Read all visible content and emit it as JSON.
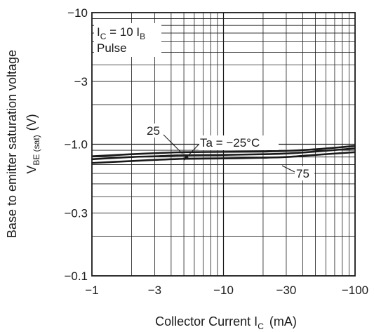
{
  "chart_data": {
    "type": "line",
    "x_scale": "log",
    "y_scale": "log",
    "xlim": [
      -1,
      -100
    ],
    "ylim": [
      -0.1,
      -10
    ],
    "grid": true,
    "x_ticks": [
      {
        "value": -1,
        "label": "−1"
      },
      {
        "value": -3,
        "label": "−3"
      },
      {
        "value": -10,
        "label": "−10"
      },
      {
        "value": -30,
        "label": "−30"
      },
      {
        "value": -100,
        "label": "−100"
      }
    ],
    "y_ticks": [
      {
        "value": -0.1,
        "label": "−0.1"
      },
      {
        "value": -0.3,
        "label": "−0.3"
      },
      {
        "value": -1.0,
        "label": "−1.0"
      },
      {
        "value": -3,
        "label": "−3"
      },
      {
        "value": -10,
        "label": "−10"
      }
    ],
    "xlabel": {
      "main": "Collector Current  I",
      "sub": "C",
      "unit": "(mA)"
    },
    "ylabel": {
      "line1": "Base to emitter saturation voltage",
      "line2_main": "V",
      "line2_sub": "BE (sat)",
      "line2_unit": "(V)"
    },
    "conditions": {
      "line1_main": "I",
      "line1_sub1": "C",
      "line1_mid": " = 10 I",
      "line1_sub2": "B",
      "line2": "Pulse"
    },
    "series": [
      {
        "name": "25",
        "label": "25",
        "x": [
          -1,
          -2,
          -3,
          -5,
          -10,
          -20,
          -30,
          -50,
          -100
        ],
        "y": [
          -0.81,
          -0.84,
          -0.855,
          -0.87,
          -0.875,
          -0.88,
          -0.89,
          -0.915,
          -0.97
        ]
      },
      {
        "name": "Ta = −25°C",
        "label": "Ta = −25°C",
        "x": [
          -1,
          -2,
          -3,
          -5,
          -10,
          -20,
          -30,
          -50,
          -100
        ],
        "y": [
          -0.77,
          -0.8,
          -0.81,
          -0.825,
          -0.83,
          -0.84,
          -0.85,
          -0.88,
          -0.93
        ]
      },
      {
        "name": "75",
        "label": "75",
        "x": [
          -1,
          -2,
          -3,
          -5,
          -10,
          -20,
          -30,
          -50,
          -100
        ],
        "y": [
          -0.72,
          -0.745,
          -0.76,
          -0.775,
          -0.78,
          -0.79,
          -0.8,
          -0.83,
          -0.87
        ]
      }
    ]
  }
}
